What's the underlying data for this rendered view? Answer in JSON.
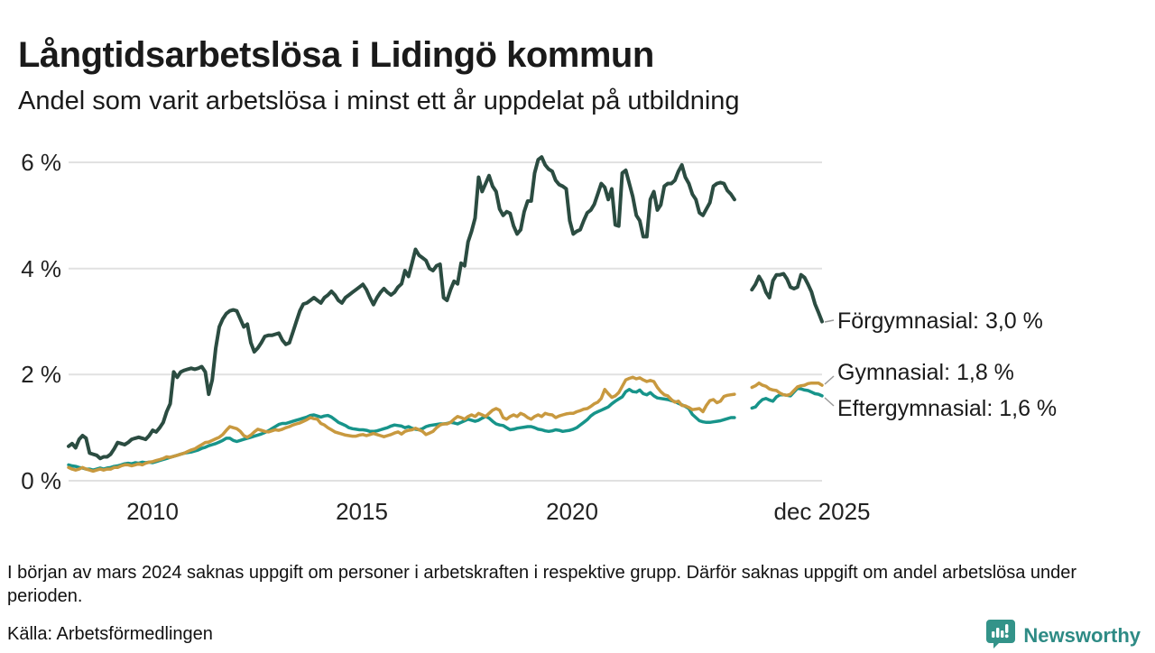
{
  "header": {
    "title": "Långtidsarbetslösa i Lidingö kommun",
    "subtitle": "Andel som varit arbetslösa i minst ett år uppdelat på utbildning"
  },
  "chart_data": {
    "type": "line",
    "unit": "%",
    "frequency": "monthly",
    "x_start": "2008-01",
    "x_end": "2025-12",
    "x_tick_labels": [
      "2010",
      "2015",
      "2020",
      "dec 2025"
    ],
    "y_tick_labels": [
      "0 %",
      "2 %",
      "4 %",
      "6 %"
    ],
    "y_axis": {
      "min": 0,
      "max": 6,
      "gridlines": [
        0,
        2,
        4,
        6
      ],
      "grid_on": true
    },
    "legend_position": "end-of-line-labels",
    "gap_months": [
      "2023-12",
      "2024-01",
      "2024-02",
      "2024-03"
    ],
    "series": [
      {
        "id": "forgymnasial",
        "name": "Förgymnasial",
        "end_label": "Förgymnasial: 3,0 %",
        "end_value": 3.0,
        "color": "#2b4c41",
        "width": 4,
        "values": [
          0.65,
          0.7,
          0.62,
          0.78,
          0.85,
          0.8,
          0.52,
          0.5,
          0.48,
          0.42,
          0.45,
          0.45,
          0.5,
          0.6,
          0.72,
          0.7,
          0.68,
          0.72,
          0.78,
          0.8,
          0.82,
          0.8,
          0.78,
          0.85,
          0.95,
          0.92,
          1.0,
          1.1,
          1.3,
          1.45,
          2.05,
          1.95,
          2.05,
          2.08,
          2.1,
          2.12,
          2.1,
          2.12,
          2.15,
          2.05,
          1.63,
          1.9,
          2.5,
          2.9,
          3.05,
          3.15,
          3.2,
          3.22,
          3.2,
          3.05,
          2.9,
          2.95,
          2.6,
          2.43,
          2.5,
          2.6,
          2.72,
          2.74,
          2.74,
          2.76,
          2.78,
          2.65,
          2.57,
          2.6,
          2.8,
          3.0,
          3.2,
          3.33,
          3.35,
          3.4,
          3.45,
          3.4,
          3.35,
          3.45,
          3.5,
          3.57,
          3.5,
          3.4,
          3.35,
          3.45,
          3.5,
          3.55,
          3.6,
          3.65,
          3.7,
          3.6,
          3.45,
          3.32,
          3.45,
          3.55,
          3.62,
          3.55,
          3.5,
          3.55,
          3.65,
          3.71,
          3.96,
          3.85,
          4.1,
          4.36,
          4.25,
          4.2,
          4.15,
          4.0,
          3.96,
          4.05,
          4.08,
          3.45,
          3.4,
          3.6,
          3.76,
          3.71,
          4.1,
          4.05,
          4.5,
          4.7,
          4.95,
          5.72,
          5.45,
          5.6,
          5.75,
          5.55,
          5.45,
          5.12,
          5.0,
          5.07,
          5.04,
          4.8,
          4.65,
          4.73,
          5.07,
          5.27,
          5.27,
          5.8,
          6.05,
          6.1,
          5.95,
          5.87,
          5.83,
          5.66,
          5.58,
          5.55,
          5.5,
          4.9,
          4.65,
          4.7,
          4.73,
          4.9,
          5.05,
          5.1,
          5.21,
          5.4,
          5.6,
          5.53,
          5.3,
          5.5,
          4.82,
          4.8,
          5.8,
          5.85,
          5.6,
          5.35,
          5.0,
          4.9,
          4.6,
          4.6,
          5.3,
          5.45,
          5.1,
          5.2,
          5.55,
          5.6,
          5.6,
          5.66,
          5.83,
          5.95,
          5.72,
          5.6,
          5.4,
          5.3,
          5.05,
          5.0,
          5.12,
          5.24,
          5.55,
          5.6,
          5.62,
          5.6,
          5.47,
          5.4,
          5.3,
          null,
          null,
          null,
          null,
          3.6,
          3.7,
          3.85,
          3.74,
          3.55,
          3.45,
          3.77,
          3.88,
          3.88,
          3.9,
          3.8,
          3.65,
          3.62,
          3.65,
          3.88,
          3.83,
          3.7,
          3.56,
          3.33,
          3.17,
          3.0
        ]
      },
      {
        "id": "gymnasial",
        "name": "Gymnasial",
        "end_label": "Gymnasial: 1,8 %",
        "end_value": 1.8,
        "color": "#c8993f",
        "width": 3.5,
        "values": [
          0.25,
          0.22,
          0.2,
          0.22,
          0.25,
          0.22,
          0.2,
          0.18,
          0.2,
          0.22,
          0.2,
          0.22,
          0.22,
          0.25,
          0.25,
          0.28,
          0.3,
          0.3,
          0.28,
          0.3,
          0.32,
          0.3,
          0.33,
          0.35,
          0.36,
          0.38,
          0.4,
          0.42,
          0.45,
          0.44,
          0.46,
          0.48,
          0.5,
          0.52,
          0.55,
          0.58,
          0.6,
          0.64,
          0.68,
          0.72,
          0.73,
          0.76,
          0.79,
          0.82,
          0.87,
          0.95,
          1.02,
          1.0,
          0.98,
          0.93,
          0.85,
          0.82,
          0.86,
          0.92,
          0.97,
          0.95,
          0.93,
          0.92,
          0.94,
          0.96,
          0.95,
          0.97,
          1.0,
          1.02,
          1.05,
          1.07,
          1.09,
          1.12,
          1.15,
          1.19,
          1.17,
          1.16,
          1.08,
          1.05,
          1.0,
          0.96,
          0.92,
          0.9,
          0.88,
          0.86,
          0.85,
          0.84,
          0.84,
          0.86,
          0.87,
          0.85,
          0.87,
          0.89,
          0.87,
          0.85,
          0.83,
          0.85,
          0.87,
          0.9,
          0.92,
          0.88,
          0.93,
          0.95,
          0.96,
          0.99,
          0.96,
          0.93,
          0.87,
          0.9,
          0.93,
          1.0,
          1.05,
          1.07,
          1.07,
          1.1,
          1.16,
          1.21,
          1.19,
          1.16,
          1.21,
          1.24,
          1.21,
          1.27,
          1.24,
          1.21,
          1.27,
          1.33,
          1.36,
          1.33,
          1.19,
          1.16,
          1.21,
          1.24,
          1.21,
          1.27,
          1.24,
          1.19,
          1.16,
          1.21,
          1.24,
          1.21,
          1.27,
          1.25,
          1.24,
          1.19,
          1.22,
          1.24,
          1.26,
          1.27,
          1.27,
          1.3,
          1.32,
          1.35,
          1.36,
          1.4,
          1.45,
          1.48,
          1.55,
          1.72,
          1.64,
          1.57,
          1.6,
          1.66,
          1.78,
          1.9,
          1.93,
          1.95,
          1.92,
          1.94,
          1.9,
          1.87,
          1.89,
          1.87,
          1.76,
          1.68,
          1.62,
          1.6,
          1.53,
          1.48,
          1.5,
          1.42,
          1.41,
          1.38,
          1.34,
          1.35,
          1.36,
          1.3,
          1.42,
          1.51,
          1.53,
          1.47,
          1.5,
          1.59,
          1.61,
          1.62,
          1.63,
          null,
          null,
          null,
          null,
          1.76,
          1.79,
          1.84,
          1.8,
          1.78,
          1.73,
          1.71,
          1.7,
          1.65,
          1.62,
          1.61,
          1.63,
          1.7,
          1.77,
          1.79,
          1.8,
          1.83,
          1.84,
          1.84,
          1.84,
          1.8
        ]
      },
      {
        "id": "eftergymnasial",
        "name": "Eftergymnasial",
        "end_label": "Eftergymnasial: 1,6 %",
        "end_value": 1.6,
        "color": "#17948a",
        "width": 3.5,
        "values": [
          0.3,
          0.28,
          0.27,
          0.25,
          0.24,
          0.22,
          0.22,
          0.2,
          0.22,
          0.24,
          0.22,
          0.24,
          0.25,
          0.27,
          0.28,
          0.3,
          0.32,
          0.33,
          0.32,
          0.34,
          0.33,
          0.35,
          0.34,
          0.35,
          0.34,
          0.36,
          0.38,
          0.4,
          0.42,
          0.44,
          0.46,
          0.48,
          0.5,
          0.52,
          0.53,
          0.54,
          0.56,
          0.58,
          0.61,
          0.63,
          0.66,
          0.68,
          0.7,
          0.73,
          0.76,
          0.8,
          0.8,
          0.76,
          0.74,
          0.76,
          0.78,
          0.8,
          0.82,
          0.84,
          0.86,
          0.88,
          0.91,
          0.94,
          0.98,
          1.02,
          1.06,
          1.08,
          1.08,
          1.1,
          1.12,
          1.14,
          1.16,
          1.18,
          1.2,
          1.23,
          1.24,
          1.22,
          1.2,
          1.22,
          1.23,
          1.2,
          1.15,
          1.1,
          1.07,
          1.04,
          1.0,
          0.98,
          0.97,
          0.96,
          0.96,
          0.95,
          0.93,
          0.93,
          0.94,
          0.96,
          0.98,
          1.0,
          1.03,
          1.05,
          1.04,
          1.03,
          1.0,
          1.02,
          0.99,
          0.97,
          0.96,
          0.98,
          1.02,
          1.04,
          1.05,
          1.06,
          1.07,
          1.07,
          1.08,
          1.1,
          1.09,
          1.07,
          1.1,
          1.13,
          1.16,
          1.14,
          1.12,
          1.14,
          1.18,
          1.21,
          1.18,
          1.12,
          1.07,
          1.05,
          1.04,
          1.0,
          0.96,
          0.97,
          0.99,
          1.0,
          1.01,
          1.02,
          1.02,
          1.0,
          0.97,
          0.96,
          0.94,
          0.93,
          0.94,
          0.96,
          0.95,
          0.93,
          0.94,
          0.95,
          0.97,
          1.0,
          1.05,
          1.1,
          1.15,
          1.22,
          1.27,
          1.3,
          1.33,
          1.36,
          1.39,
          1.45,
          1.5,
          1.54,
          1.58,
          1.68,
          1.72,
          1.68,
          1.67,
          1.71,
          1.64,
          1.62,
          1.66,
          1.6,
          1.56,
          1.55,
          1.54,
          1.53,
          1.51,
          1.49,
          1.46,
          1.43,
          1.4,
          1.36,
          1.25,
          1.19,
          1.13,
          1.11,
          1.1,
          1.1,
          1.11,
          1.12,
          1.13,
          1.15,
          1.17,
          1.19,
          1.19,
          null,
          null,
          null,
          null,
          1.37,
          1.39,
          1.47,
          1.53,
          1.55,
          1.52,
          1.5,
          1.58,
          1.62,
          1.62,
          1.61,
          1.6,
          1.67,
          1.74,
          1.73,
          1.71,
          1.7,
          1.67,
          1.64,
          1.63,
          1.6
        ]
      }
    ]
  },
  "footer": {
    "note": "I början av mars 2024 saknas uppgift om personer i arbetskraften i respektive grupp. Därför saknas uppgift om andel arbetslösa under perioden.",
    "source": "Källa: Arbetsförmedlingen"
  },
  "branding": {
    "logo_text": "Newsworthy",
    "logo_color": "#2e8b85",
    "logo_icon": "speech-bubble-bar-chart",
    "icon_fill": "#339389"
  }
}
